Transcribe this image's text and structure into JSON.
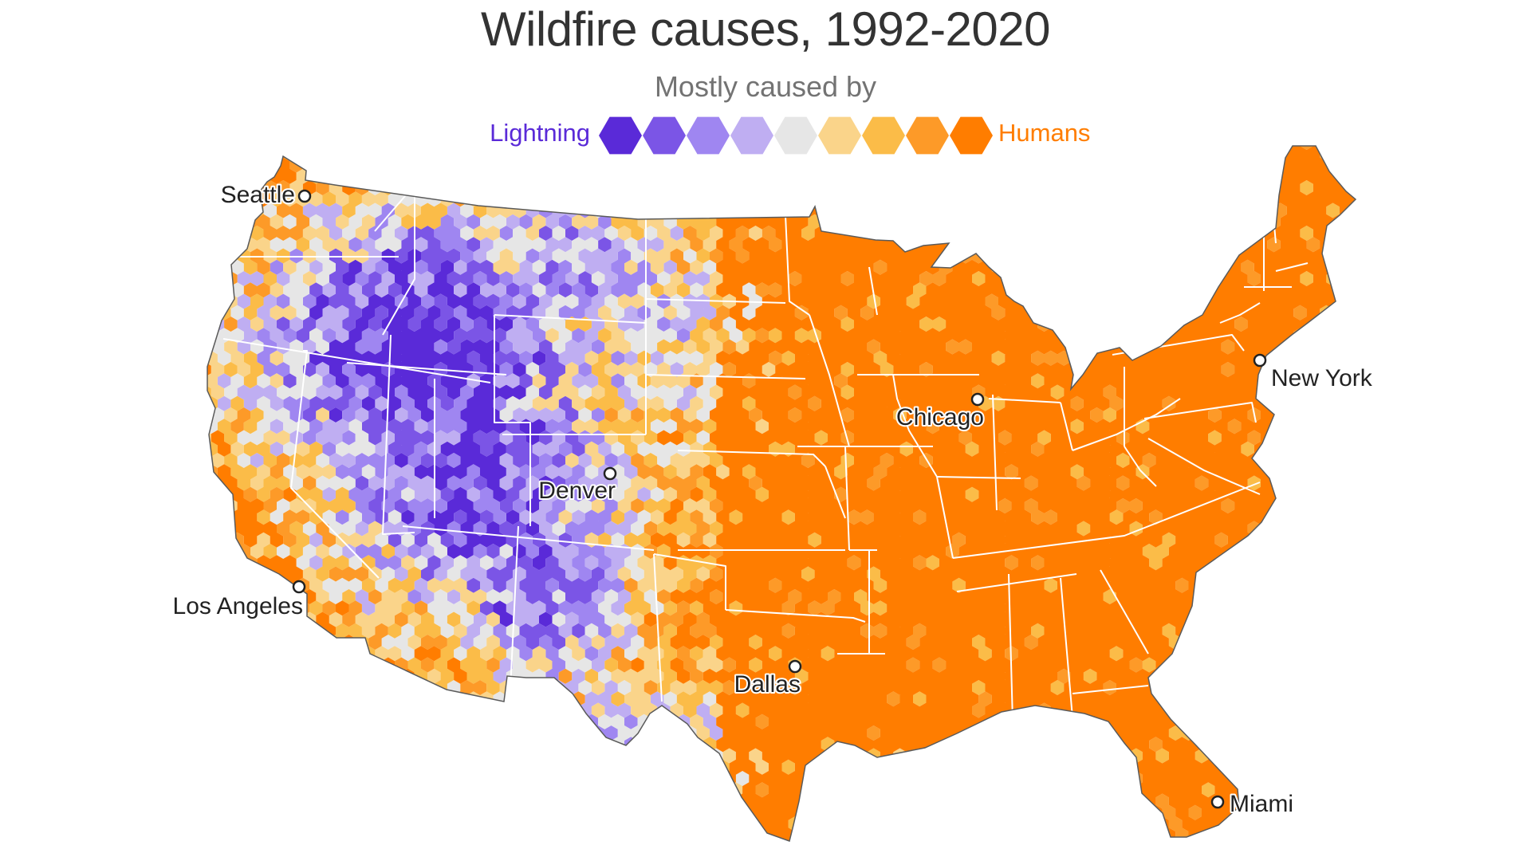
{
  "title": "Wildfire causes, 1992-2020",
  "legend": {
    "heading": "Mostly caused by",
    "left_label": "Lightning",
    "right_label": "Humans",
    "scale_colors": [
      "#5a2ad8",
      "#7b55e6",
      "#9f86f1",
      "#bfaef2",
      "#e6e6e6",
      "#fad48a",
      "#fbbc48",
      "#fd9a28",
      "#ff7d00"
    ]
  },
  "map": {
    "region": "Contiguous United States",
    "cities": [
      {
        "name": "Seattle"
      },
      {
        "name": "Los Angeles"
      },
      {
        "name": "Denver"
      },
      {
        "name": "Dallas"
      },
      {
        "name": "Chicago"
      },
      {
        "name": "New York"
      },
      {
        "name": "Miami"
      }
    ]
  }
}
